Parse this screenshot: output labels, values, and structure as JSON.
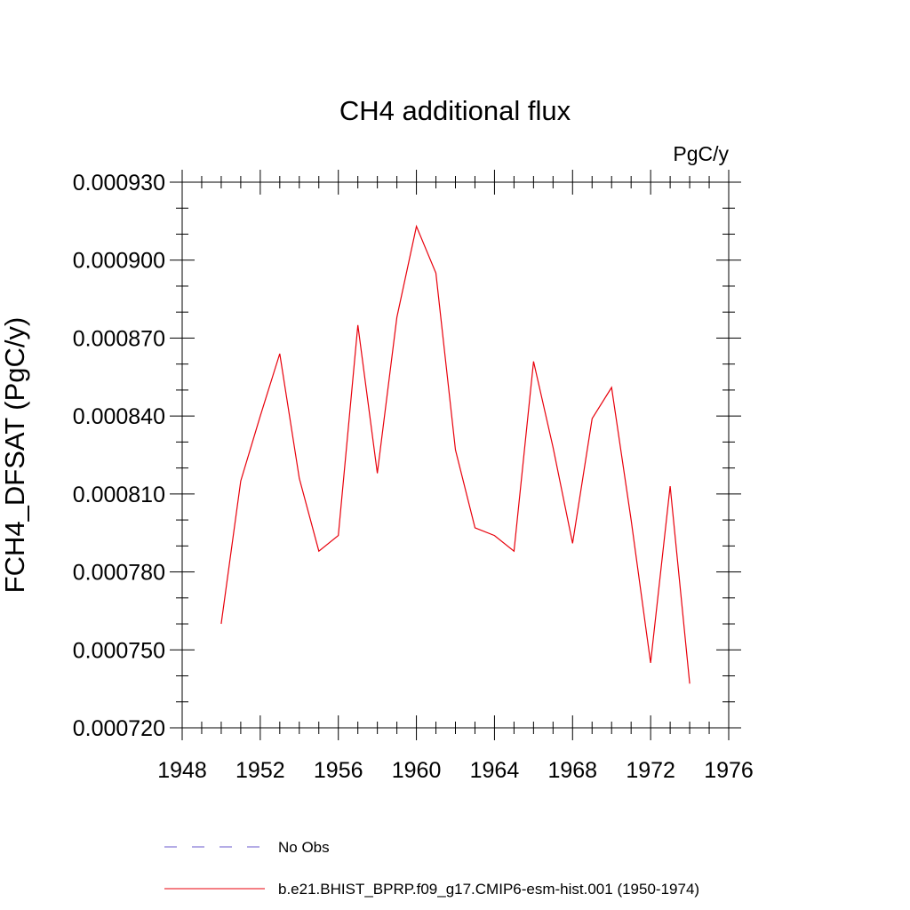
{
  "chart_data": {
    "type": "line",
    "title": "CH4 additional flux",
    "units": "PgC/y",
    "xlabel": "",
    "ylabel": "FCH4_DFSAT  (PgC/y)",
    "xlim": [
      1948,
      1976
    ],
    "ylim": [
      0.00072,
      0.00093
    ],
    "x_ticks": [
      1948,
      1952,
      1956,
      1960,
      1964,
      1968,
      1972,
      1976
    ],
    "x_tick_labels": [
      "1948",
      "1952",
      "1956",
      "1960",
      "1964",
      "1968",
      "1972",
      "1976"
    ],
    "y_ticks": [
      0.00072,
      0.00075,
      0.00078,
      0.00081,
      0.00084,
      0.00087,
      0.0009,
      0.00093
    ],
    "y_tick_labels": [
      "0.000720",
      "0.000750",
      "0.000780",
      "0.000810",
      "0.000840",
      "0.000870",
      "0.000900",
      "0.000930"
    ],
    "grid": false,
    "legend_position": "bottom",
    "series": [
      {
        "name": "b.e21.BHIST_BPRP.f09_g17.CMIP6-esm-hist.001 (1950-1974)",
        "color": "#e8000b",
        "style": "solid",
        "x": [
          1950,
          1951,
          1952,
          1953,
          1954,
          1955,
          1956,
          1957,
          1958,
          1959,
          1960,
          1961,
          1962,
          1963,
          1964,
          1965,
          1966,
          1967,
          1968,
          1969,
          1970,
          1971,
          1972,
          1973,
          1974
        ],
        "values": [
          0.00076,
          0.000815,
          0.00084,
          0.000864,
          0.000816,
          0.000788,
          0.000794,
          0.000875,
          0.000818,
          0.000878,
          0.000913,
          0.000895,
          0.000827,
          0.000797,
          0.000794,
          0.000788,
          0.000861,
          0.000828,
          0.000791,
          0.000839,
          0.000851,
          0.0008,
          0.000745,
          0.000813,
          0.000737
        ]
      }
    ],
    "legend": [
      {
        "label": "No Obs",
        "color": "#6a5acd",
        "style": "dashed"
      },
      {
        "label": "b.e21.BHIST_BPRP.f09_g17.CMIP6-esm-hist.001 (1950-1974)",
        "color": "#e8000b",
        "style": "solid"
      }
    ]
  }
}
